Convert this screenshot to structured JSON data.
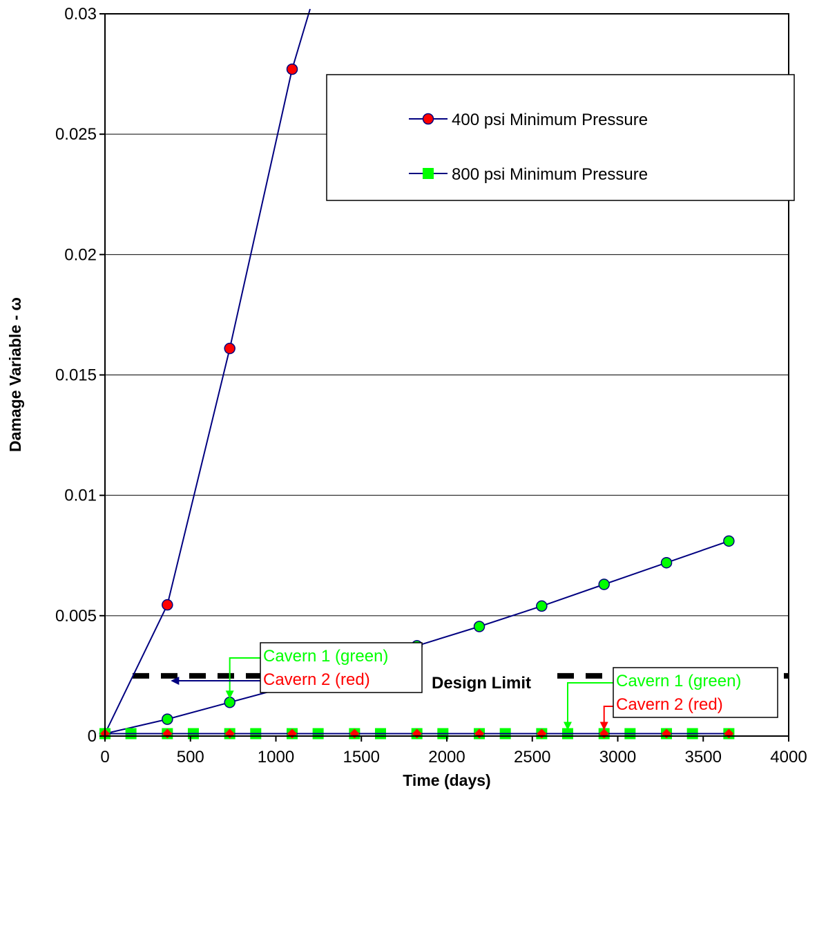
{
  "chart_data": {
    "type": "line",
    "title": "",
    "xlabel": "Time  (days)",
    "ylabel": "Damage Variable  - ω",
    "xlim": [
      0,
      4000
    ],
    "ylim": [
      0,
      0.03
    ],
    "xticks": [
      "0",
      "500",
      "1000",
      "1500",
      "2000",
      "2500",
      "3000",
      "3500",
      "4000"
    ],
    "yticks": [
      "0",
      "0.005",
      "0.01",
      "0.015",
      "0.02",
      "0.025",
      "0.03"
    ],
    "grid": "horizontal",
    "legend_position": "top-right",
    "legend": [
      {
        "label": "400 psi Minimum Pressure",
        "marker": "circle",
        "color": "#ff0000"
      },
      {
        "label": "800 psi Minimum Pressure",
        "marker": "square",
        "color": "#00ff00"
      }
    ],
    "series": [
      {
        "key": "c2-400",
        "marker": "circle",
        "fill": "#ff0000",
        "x": [
          0,
          365,
          730,
          1095,
          1200
        ],
        "y": [
          0.0001,
          0.00545,
          0.0161,
          0.0277,
          0.0302
        ],
        "marker_count": 4
      },
      {
        "key": "c1-400",
        "marker": "circle",
        "fill": "#00ff00",
        "x": [
          0,
          365,
          730,
          1095,
          1460,
          1825,
          2190,
          2555,
          2920,
          3285,
          3650
        ],
        "y": [
          0.0001,
          0.0007,
          0.0014,
          0.0021,
          0.0029,
          0.00375,
          0.00455,
          0.0054,
          0.0063,
          0.0072,
          0.0081
        ]
      },
      {
        "key": "c1-800",
        "marker": "square",
        "fill": "#00ff00",
        "x": [
          0,
          152,
          365,
          517,
          730,
          882,
          1095,
          1247,
          1460,
          1612,
          1825,
          1977,
          2190,
          2342,
          2555,
          2707,
          2920,
          3072,
          3285,
          3437,
          3650
        ],
        "y": [
          0.0001,
          0.0001,
          0.0001,
          0.0001,
          0.0001,
          0.0001,
          0.0001,
          0.0001,
          0.0001,
          0.0001,
          0.0001,
          0.0001,
          0.0001,
          0.0001,
          0.0001,
          0.0001,
          0.0001,
          0.0001,
          0.0001,
          0.0001,
          0.0001
        ]
      },
      {
        "key": "c2-800",
        "marker": "diamond",
        "fill": "#ff0000",
        "x": [
          0,
          365,
          730,
          1095,
          1460,
          1825,
          2190,
          2555,
          2920,
          3285,
          3650
        ],
        "y": [
          0.0001,
          0.0001,
          0.0001,
          0.0001,
          0.0001,
          0.0001,
          0.0001,
          0.0001,
          0.0001,
          0.0001,
          0.0001
        ]
      }
    ],
    "design_limit": {
      "y": 0.0025,
      "label": "Design Limit"
    },
    "annotations": [
      {
        "lines": [
          {
            "text": "Cavern 1 (green)",
            "color": "#00ff00"
          },
          {
            "text": "Cavern 2 (red)",
            "color": "#ff0000"
          }
        ],
        "arrows": [
          {
            "color": "#00ff00",
            "to": [
              730,
              0.0014
            ]
          },
          {
            "color": "#000080",
            "to": [
              365,
              0.00545
            ]
          }
        ]
      },
      {
        "lines": [
          {
            "text": "Cavern 1 (green)",
            "color": "#00ff00"
          },
          {
            "text": "Cavern 2 (red)",
            "color": "#ff0000"
          }
        ],
        "arrows": [
          {
            "color": "#00ff00",
            "to": [
              2707,
              0.0001
            ]
          },
          {
            "color": "#ff0000",
            "to": [
              2920,
              0.0001
            ]
          }
        ]
      }
    ],
    "colors": {
      "line": "#000080",
      "grid": "#000000",
      "design_limit": "#000000"
    }
  }
}
